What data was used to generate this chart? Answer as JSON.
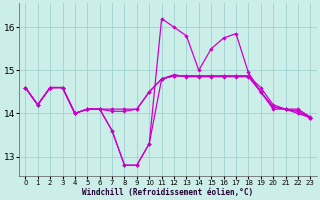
{
  "background_color": "#cceee8",
  "line_color": "#cc00cc",
  "grid_color": "#99cccc",
  "xlabel": "Windchill (Refroidissement éolien,°C)",
  "ylabel_ticks": [
    13,
    14,
    15,
    16
  ],
  "xlim": [
    -0.5,
    23.5
  ],
  "ylim": [
    12.55,
    16.55
  ],
  "x_ticks": [
    0,
    1,
    2,
    3,
    4,
    5,
    6,
    7,
    8,
    9,
    10,
    11,
    12,
    13,
    14,
    15,
    16,
    17,
    18,
    19,
    20,
    21,
    22,
    23
  ],
  "lines": [
    [
      14.6,
      14.2,
      14.6,
      14.6,
      14.0,
      14.1,
      14.1,
      13.6,
      12.8,
      12.8,
      13.3,
      16.2,
      16.0,
      15.8,
      15.0,
      15.5,
      15.75,
      15.85,
      14.95,
      14.5,
      14.1,
      14.1,
      14.0,
      13.9
    ],
    [
      14.6,
      14.2,
      14.6,
      14.6,
      14.0,
      14.1,
      14.1,
      13.6,
      12.8,
      12.8,
      13.3,
      14.8,
      14.9,
      14.85,
      14.85,
      14.85,
      14.85,
      14.85,
      14.85,
      14.5,
      14.15,
      14.1,
      14.05,
      13.9
    ],
    [
      14.6,
      14.2,
      14.6,
      14.6,
      14.0,
      14.1,
      14.1,
      14.05,
      14.05,
      14.1,
      14.5,
      14.8,
      14.87,
      14.87,
      14.87,
      14.87,
      14.87,
      14.87,
      14.87,
      14.5,
      14.15,
      14.1,
      14.05,
      13.9
    ],
    [
      14.6,
      14.2,
      14.6,
      14.6,
      14.0,
      14.1,
      14.1,
      14.1,
      14.1,
      14.1,
      14.5,
      14.8,
      14.87,
      14.87,
      14.87,
      14.87,
      14.87,
      14.87,
      14.87,
      14.6,
      14.2,
      14.1,
      14.1,
      13.92
    ]
  ]
}
